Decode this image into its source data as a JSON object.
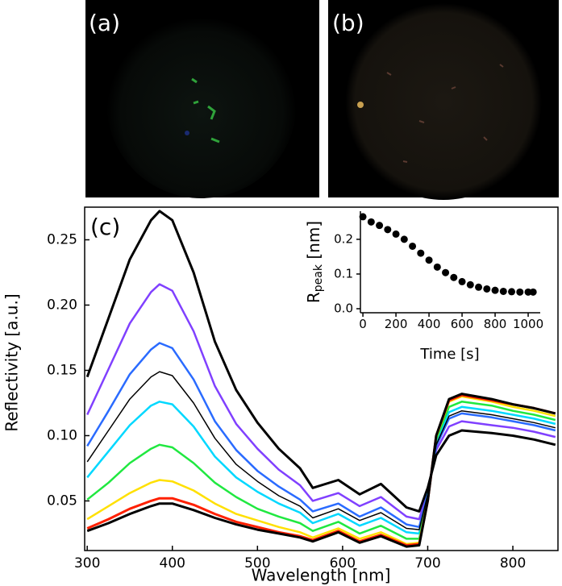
{
  "panel_labels": [
    "(a)",
    "(b)"
  ],
  "chart_data": [
    {
      "type": "line",
      "annotation": "(c)",
      "xlabel": "Wavelength [nm]",
      "ylabel": "Reflectivity [a.u.]",
      "xlim": [
        297,
        853
      ],
      "ylim": [
        0.012,
        0.275
      ],
      "xticks": [
        300,
        400,
        500,
        600,
        700,
        800
      ],
      "yticks": [
        0.05,
        {
          "value": 0.1,
          "label": "0.10"
        },
        0.15,
        {
          "value": 0.2,
          "label": "0.20"
        },
        0.25
      ],
      "x": [
        300,
        325,
        350,
        375,
        385,
        400,
        425,
        450,
        475,
        500,
        525,
        550,
        565,
        595,
        620,
        645,
        675,
        690,
        700,
        710,
        725,
        740,
        775,
        800,
        825,
        850
      ],
      "series": [
        {
          "color": "#8040ff",
          "width": 2.5,
          "values": [
            0.116,
            0.151,
            0.186,
            0.21,
            0.216,
            0.211,
            0.18,
            0.138,
            0.109,
            0.09,
            0.074,
            0.062,
            0.05,
            0.056,
            0.046,
            0.053,
            0.038,
            0.036,
            0.058,
            0.089,
            0.107,
            0.111,
            0.108,
            0.106,
            0.103,
            0.099
          ]
        },
        {
          "color": "#2a6bff",
          "width": 2.5,
          "values": [
            0.092,
            0.119,
            0.147,
            0.166,
            0.171,
            0.167,
            0.143,
            0.111,
            0.089,
            0.073,
            0.061,
            0.051,
            0.042,
            0.048,
            0.038,
            0.045,
            0.032,
            0.03,
            0.056,
            0.092,
            0.113,
            0.117,
            0.114,
            0.111,
            0.108,
            0.104
          ]
        },
        {
          "color": "#00d8ff",
          "width": 2.5,
          "values": [
            0.068,
            0.088,
            0.108,
            0.123,
            0.126,
            0.124,
            0.107,
            0.084,
            0.068,
            0.057,
            0.048,
            0.041,
            0.033,
            0.04,
            0.031,
            0.037,
            0.026,
            0.025,
            0.054,
            0.095,
            0.118,
            0.122,
            0.119,
            0.116,
            0.113,
            0.109
          ]
        },
        {
          "color": "#20e840",
          "width": 2.5,
          "values": [
            0.051,
            0.064,
            0.079,
            0.09,
            0.093,
            0.091,
            0.079,
            0.064,
            0.053,
            0.044,
            0.038,
            0.033,
            0.027,
            0.034,
            0.025,
            0.031,
            0.021,
            0.021,
            0.052,
            0.097,
            0.122,
            0.126,
            0.123,
            0.119,
            0.116,
            0.112
          ]
        },
        {
          "color": "#ffe000",
          "width": 2.5,
          "values": [
            0.036,
            0.046,
            0.056,
            0.064,
            0.066,
            0.065,
            0.058,
            0.048,
            0.04,
            0.035,
            0.03,
            0.026,
            0.022,
            0.029,
            0.021,
            0.026,
            0.017,
            0.018,
            0.051,
            0.099,
            0.126,
            0.13,
            0.126,
            0.122,
            0.119,
            0.115
          ]
        },
        {
          "color": "#ff2000",
          "width": 3,
          "values": [
            0.029,
            0.036,
            0.044,
            0.05,
            0.052,
            0.052,
            0.047,
            0.04,
            0.034,
            0.03,
            0.026,
            0.023,
            0.02,
            0.027,
            0.019,
            0.024,
            0.016,
            0.017,
            0.05,
            0.1,
            0.127,
            0.131,
            0.127,
            0.124,
            0.121,
            0.117
          ]
        },
        {
          "color": "#000000",
          "width": 3,
          "values": [
            0.145,
            0.19,
            0.235,
            0.265,
            0.272,
            0.265,
            0.225,
            0.172,
            0.135,
            0.11,
            0.09,
            0.075,
            0.06,
            0.066,
            0.055,
            0.063,
            0.045,
            0.042,
            0.06,
            0.085,
            0.1,
            0.104,
            0.102,
            0.1,
            0.097,
            0.093
          ]
        },
        {
          "color": "#000000",
          "width": 1.5,
          "values": [
            0.08,
            0.104,
            0.128,
            0.145,
            0.149,
            0.146,
            0.125,
            0.098,
            0.078,
            0.065,
            0.054,
            0.046,
            0.037,
            0.044,
            0.035,
            0.041,
            0.029,
            0.028,
            0.055,
            0.093,
            0.115,
            0.119,
            0.116,
            0.113,
            0.11,
            0.106
          ]
        },
        {
          "color": "#000000",
          "width": 3,
          "values": [
            0.027,
            0.033,
            0.04,
            0.046,
            0.048,
            0.048,
            0.043,
            0.037,
            0.032,
            0.028,
            0.025,
            0.022,
            0.019,
            0.026,
            0.018,
            0.023,
            0.015,
            0.016,
            0.05,
            0.1,
            0.128,
            0.132,
            0.128,
            0.124,
            0.121,
            0.117
          ]
        }
      ]
    },
    {
      "type": "scatter",
      "xlabel": "Time [s]",
      "ylabel": "R",
      "ylabel_sub": "peak",
      "ylabel_unit": " [nm]",
      "color": "#000000",
      "xlim": [
        -15,
        1073
      ],
      "ylim": [
        -0.0116,
        0.281
      ],
      "xticks": [
        0,
        200,
        400,
        600,
        800,
        1000
      ],
      "yticks": [
        {
          "value": 0,
          "label": "0.0"
        },
        0.1,
        0.2
      ],
      "x": [
        0,
        50,
        100,
        150,
        200,
        250,
        300,
        350,
        400,
        450,
        500,
        550,
        600,
        650,
        700,
        750,
        800,
        850,
        900,
        950,
        1000,
        1030
      ],
      "values": [
        0.265,
        0.25,
        0.24,
        0.228,
        0.215,
        0.2,
        0.18,
        0.16,
        0.14,
        0.12,
        0.104,
        0.09,
        0.078,
        0.069,
        0.062,
        0.057,
        0.053,
        0.05,
        0.049,
        0.048,
        0.048,
        0.048
      ]
    }
  ]
}
